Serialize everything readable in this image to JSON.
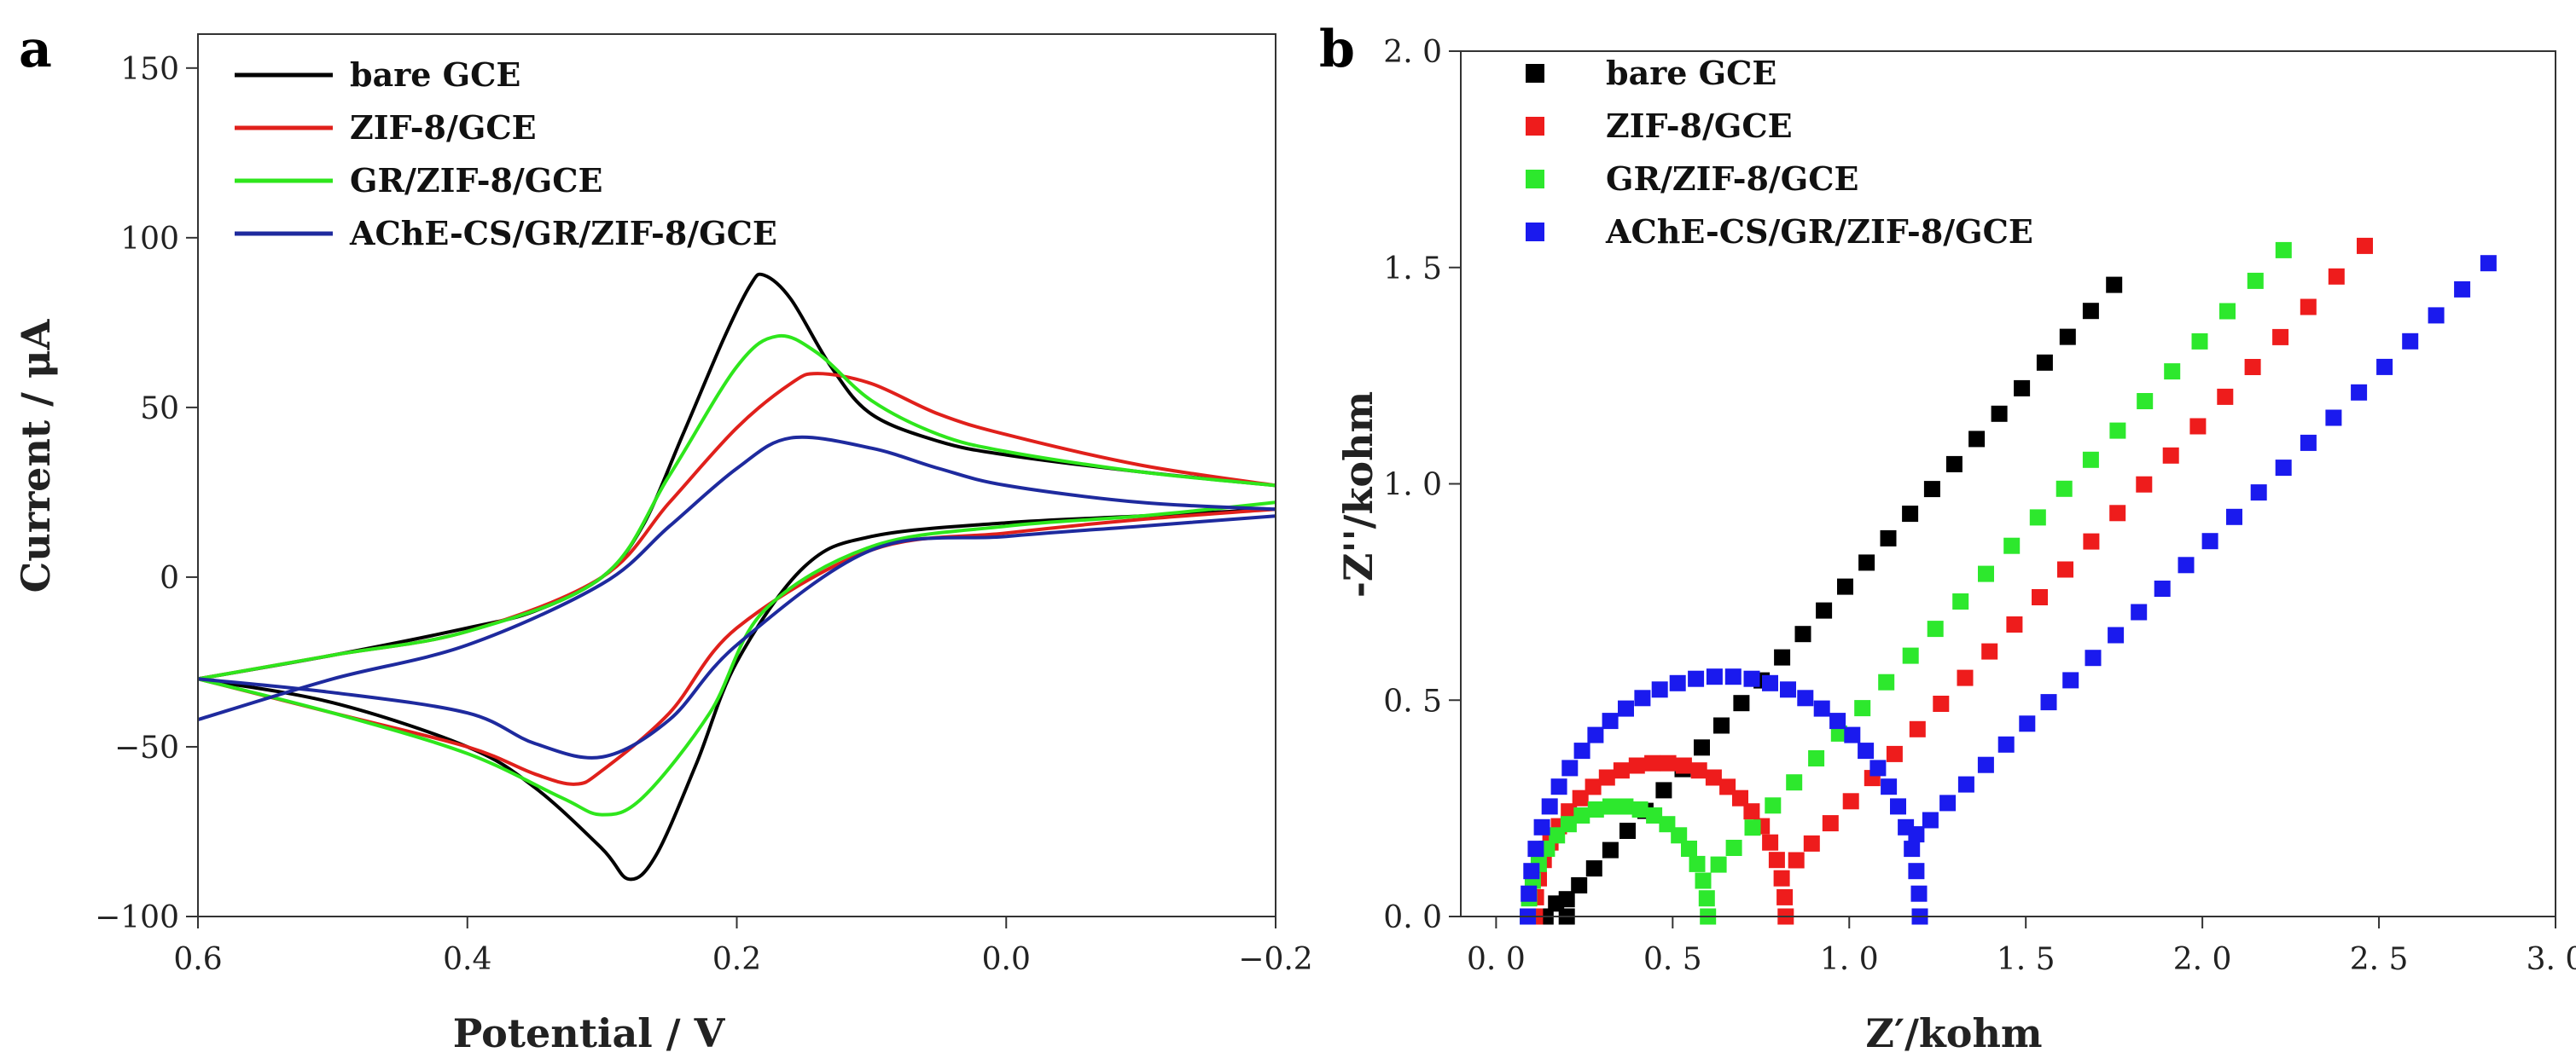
{
  "chart_data": [
    {
      "type": "line",
      "panel_label": "a",
      "xlabel": "Potential / V",
      "ylabel": "Current / μA",
      "xlim": [
        0.6,
        -0.2
      ],
      "ylim": [
        -100,
        160
      ],
      "x_ticks": [
        0.6,
        0.4,
        0.2,
        0.0,
        -0.2
      ],
      "x_tick_labels": [
        "0.6",
        "0.4",
        "0.2",
        "0.0",
        "−0.2"
      ],
      "y_ticks": [
        -100,
        -50,
        0,
        50,
        100,
        150
      ],
      "y_tick_labels": [
        "−100",
        "−50",
        "0",
        "50",
        "100",
        "150"
      ],
      "legend_position": "top-left",
      "series": [
        {
          "name": "bare GCE",
          "color": "#000000",
          "anodic": [
            [
              0.6,
              -30
            ],
            [
              0.5,
              -23
            ],
            [
              0.4,
              -15
            ],
            [
              0.35,
              -10
            ],
            [
              0.3,
              0
            ],
            [
              0.27,
              15
            ],
            [
              0.24,
              42
            ],
            [
              0.21,
              70
            ],
            [
              0.19,
              86
            ],
            [
              0.18,
              89
            ],
            [
              0.16,
              82
            ],
            [
              0.13,
              62
            ],
            [
              0.1,
              48
            ],
            [
              0.05,
              40
            ],
            [
              0.0,
              36
            ],
            [
              -0.1,
              31
            ],
            [
              -0.2,
              27
            ]
          ],
          "cathodic": [
            [
              -0.2,
              20
            ],
            [
              -0.1,
              18
            ],
            [
              0.0,
              16
            ],
            [
              0.1,
              12
            ],
            [
              0.15,
              3
            ],
            [
              0.2,
              -25
            ],
            [
              0.23,
              -55
            ],
            [
              0.26,
              -82
            ],
            [
              0.28,
              -89
            ],
            [
              0.3,
              -80
            ],
            [
              0.35,
              -62
            ],
            [
              0.4,
              -50
            ],
            [
              0.5,
              -37
            ],
            [
              0.6,
              -30
            ]
          ]
        },
        {
          "name": "ZIF-8/GCE",
          "color": "#e0201b",
          "anodic": [
            [
              0.6,
              -30
            ],
            [
              0.5,
              -23
            ],
            [
              0.4,
              -16
            ],
            [
              0.3,
              0
            ],
            [
              0.25,
              22
            ],
            [
              0.2,
              44
            ],
            [
              0.16,
              57
            ],
            [
              0.14,
              60
            ],
            [
              0.1,
              57
            ],
            [
              0.05,
              48
            ],
            [
              0.0,
              42
            ],
            [
              -0.1,
              33
            ],
            [
              -0.2,
              27
            ]
          ],
          "cathodic": [
            [
              -0.2,
              20
            ],
            [
              -0.1,
              17
            ],
            [
              0.0,
              13
            ],
            [
              0.1,
              8
            ],
            [
              0.2,
              -15
            ],
            [
              0.25,
              -40
            ],
            [
              0.3,
              -57
            ],
            [
              0.32,
              -61
            ],
            [
              0.35,
              -58
            ],
            [
              0.4,
              -50
            ],
            [
              0.5,
              -40
            ],
            [
              0.6,
              -30
            ]
          ]
        },
        {
          "name": "GR/ZIF-8/GCE",
          "color": "#2ee61c",
          "anodic": [
            [
              0.6,
              -30
            ],
            [
              0.5,
              -23
            ],
            [
              0.4,
              -16
            ],
            [
              0.3,
              0
            ],
            [
              0.25,
              30
            ],
            [
              0.2,
              62
            ],
            [
              0.17,
              71
            ],
            [
              0.14,
              66
            ],
            [
              0.1,
              52
            ],
            [
              0.05,
              42
            ],
            [
              0.0,
              37
            ],
            [
              -0.1,
              31
            ],
            [
              -0.2,
              27
            ]
          ],
          "cathodic": [
            [
              -0.2,
              22
            ],
            [
              -0.1,
              18
            ],
            [
              0.0,
              15
            ],
            [
              0.1,
              9
            ],
            [
              0.18,
              -10
            ],
            [
              0.22,
              -40
            ],
            [
              0.27,
              -65
            ],
            [
              0.3,
              -70
            ],
            [
              0.33,
              -65
            ],
            [
              0.4,
              -52
            ],
            [
              0.5,
              -40
            ],
            [
              0.6,
              -30
            ]
          ]
        },
        {
          "name": "AChE-CS/GR/ZIF-8/GCE",
          "color": "#1e2a9e",
          "anodic": [
            [
              0.6,
              -42
            ],
            [
              0.5,
              -30
            ],
            [
              0.4,
              -20
            ],
            [
              0.3,
              -2
            ],
            [
              0.25,
              15
            ],
            [
              0.2,
              32
            ],
            [
              0.16,
              41
            ],
            [
              0.1,
              38
            ],
            [
              0.05,
              32
            ],
            [
              0.0,
              27
            ],
            [
              -0.1,
              22
            ],
            [
              -0.2,
              20
            ]
          ],
          "cathodic": [
            [
              -0.2,
              18
            ],
            [
              -0.1,
              15
            ],
            [
              0.0,
              12
            ],
            [
              0.1,
              8
            ],
            [
              0.2,
              -20
            ],
            [
              0.25,
              -42
            ],
            [
              0.3,
              -53
            ],
            [
              0.35,
              -49
            ],
            [
              0.4,
              -40
            ],
            [
              0.5,
              -34
            ],
            [
              0.6,
              -30
            ]
          ]
        }
      ]
    },
    {
      "type": "scatter",
      "panel_label": "b",
      "xlabel": "Z′/kohm",
      "ylabel": "-Z''/kohm",
      "xlim": [
        -0.1,
        3.0
      ],
      "ylim": [
        0.0,
        2.0
      ],
      "x_ticks": [
        0.0,
        0.5,
        1.0,
        1.5,
        2.0,
        2.5,
        3.0
      ],
      "x_tick_labels": [
        "0. 0",
        "0. 5",
        "1. 0",
        "1. 5",
        "2. 0",
        "2. 5",
        "3. 0"
      ],
      "y_ticks": [
        0.0,
        0.5,
        1.0,
        1.5,
        2.0
      ],
      "y_tick_labels": [
        "0. 0",
        "0. 5",
        "1. 0",
        "1. 5",
        "2. 0"
      ],
      "legend_position": "top-left",
      "series": [
        {
          "name": "bare GCE",
          "color": "#000000",
          "semicircle": {
            "center": 0.17,
            "radius": 0.03,
            "n": 3
          },
          "tail": {
            "x0": 0.2,
            "y0": 0.04,
            "x1": 1.75,
            "y1": 1.46,
            "n": 28
          }
        },
        {
          "name": "ZIF-8/GCE",
          "color": "#ee1c1c",
          "semicircle": {
            "center": 0.465,
            "radius": 0.355,
            "n": 26
          },
          "tail": {
            "x0": 0.85,
            "y0": 0.13,
            "x1": 2.46,
            "y1": 1.55,
            "n": 24
          }
        },
        {
          "name": "GR/ZIF-8/GCE",
          "color": "#2de82d",
          "semicircle": {
            "center": 0.345,
            "radius": 0.255,
            "n": 20
          },
          "tail": {
            "x0": 0.63,
            "y0": 0.12,
            "x1": 2.23,
            "y1": 1.54,
            "n": 24
          }
        },
        {
          "name": "AChE-CS/GR/ZIF-8/GCE",
          "color": "#1a1aee",
          "semicircle": {
            "center": 0.645,
            "radius": 0.555,
            "n": 34
          },
          "tail": {
            "x0": 1.19,
            "y0": 0.19,
            "x1": 2.81,
            "y1": 1.51,
            "n": 26
          }
        }
      ]
    }
  ]
}
